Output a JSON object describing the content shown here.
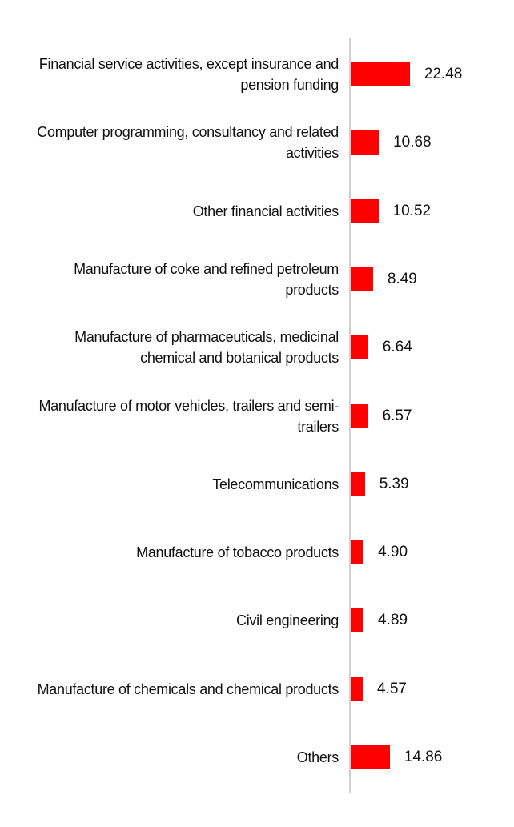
{
  "chart_data": {
    "type": "bar",
    "orientation": "horizontal",
    "categories": [
      "Financial service activities, except insurance and pension funding",
      "Computer programming, consultancy and related activities",
      "Other financial activities",
      "Manufacture of coke and refined petroleum products",
      "Manufacture of pharmaceuticals, medicinal chemical and botanical products",
      "Manufacture of motor vehicles, trailers and semi-trailers",
      "Telecommunications",
      "Manufacture of tobacco products",
      "Civil engineering",
      "Manufacture of chemicals and chemical products",
      "Others"
    ],
    "values": [
      22.48,
      10.68,
      10.52,
      8.49,
      6.64,
      6.57,
      5.39,
      4.9,
      4.89,
      4.57,
      14.86
    ],
    "value_labels": [
      "22.48",
      "10.68",
      "10.52",
      "8.49",
      "6.64",
      "6.57",
      "5.39",
      "4.90",
      "4.89",
      "4.57",
      "14.86"
    ],
    "color": "#ff0000",
    "xlim": [
      0,
      60
    ]
  }
}
